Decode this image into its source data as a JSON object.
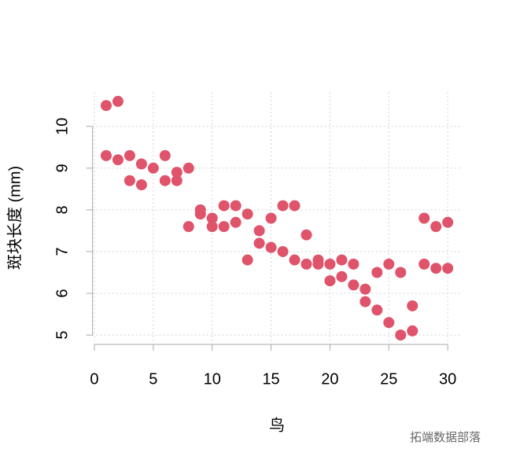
{
  "chart_data": {
    "type": "scatter",
    "xlabel": "鸟",
    "ylabel": "斑块长度 (mm)",
    "x": [
      1,
      2,
      1,
      2,
      3,
      3,
      4,
      4,
      5,
      6,
      6,
      7,
      7,
      8,
      8,
      9,
      9,
      10,
      10,
      11,
      11,
      12,
      12,
      13,
      13,
      14,
      14,
      15,
      15,
      16,
      16,
      17,
      17,
      18,
      18,
      19,
      19,
      20,
      20,
      21,
      21,
      22,
      22,
      23,
      23,
      24,
      24,
      25,
      25,
      26,
      26,
      27,
      27,
      28,
      28,
      29,
      29,
      30,
      30
    ],
    "values": [
      10.5,
      10.6,
      9.3,
      9.2,
      9.3,
      8.7,
      9.1,
      8.6,
      9.0,
      9.3,
      8.7,
      8.9,
      8.7,
      9.0,
      7.6,
      8.0,
      7.9,
      7.8,
      7.6,
      8.1,
      7.6,
      8.1,
      7.7,
      7.9,
      6.8,
      7.5,
      7.2,
      7.8,
      7.1,
      8.1,
      7.0,
      8.1,
      6.8,
      7.4,
      6.7,
      6.8,
      6.7,
      6.7,
      6.3,
      6.8,
      6.4,
      6.7,
      6.2,
      6.1,
      5.8,
      6.5,
      5.6,
      6.7,
      5.3,
      6.5,
      5.0,
      5.7,
      5.1,
      7.8,
      6.7,
      7.6,
      6.6,
      7.7,
      6.6
    ],
    "color": "#df536b",
    "xlim": [
      -0.16,
      31.16
    ],
    "ylim": [
      4.776,
      10.824
    ],
    "xticks": [
      0,
      5,
      10,
      15,
      20,
      25,
      30
    ],
    "yticks": [
      5,
      6,
      7,
      8,
      9,
      10
    ],
    "grid": true,
    "watermark": "拓端数据部落"
  }
}
